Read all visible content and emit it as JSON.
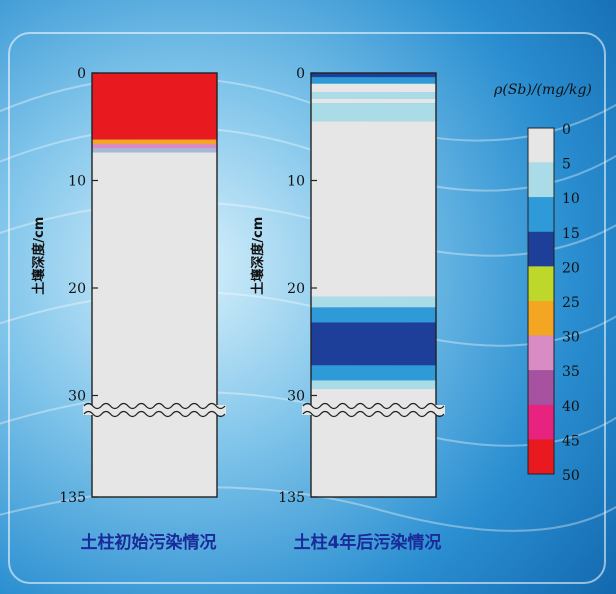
{
  "columns": [
    {
      "caption": "土柱初始污染情况",
      "y_axis_label": "土壤深度/cm",
      "tick_labels": [
        "0",
        "10",
        "20",
        "30",
        "135"
      ],
      "bands": [
        {
          "from_cm": 0,
          "to_cm": 6.2,
          "color": "#e8191f"
        },
        {
          "from_cm": 6.2,
          "to_cm": 6.6,
          "color": "#f4a623"
        },
        {
          "from_cm": 6.6,
          "to_cm": 7.0,
          "color": "#d98bc3"
        },
        {
          "from_cm": 7.0,
          "to_cm": 7.4,
          "color": "#aab6d8"
        },
        {
          "from_cm": 7.4,
          "to_cm": 135,
          "color": "#e6e6e6"
        }
      ]
    },
    {
      "caption": "土柱4年后污染情况",
      "y_axis_label": "土壤深度/cm",
      "tick_labels": [
        "0",
        "10",
        "20",
        "30",
        "135"
      ],
      "bands": [
        {
          "from_cm": 0,
          "to_cm": 0.4,
          "color": "#1e3f99"
        },
        {
          "from_cm": 0.4,
          "to_cm": 1.0,
          "color": "#2e9ad8"
        },
        {
          "from_cm": 1.0,
          "to_cm": 1.8,
          "color": "#e6e6e6"
        },
        {
          "from_cm": 1.8,
          "to_cm": 2.4,
          "color": "#a9dce6"
        },
        {
          "from_cm": 2.4,
          "to_cm": 2.8,
          "color": "#e6e6e6"
        },
        {
          "from_cm": 2.8,
          "to_cm": 4.5,
          "color": "#a9dce6"
        },
        {
          "from_cm": 4.5,
          "to_cm": 20.8,
          "color": "#e6e6e6"
        },
        {
          "from_cm": 20.8,
          "to_cm": 21.8,
          "color": "#a9dce6"
        },
        {
          "from_cm": 21.8,
          "to_cm": 23.2,
          "color": "#2e9ad8"
        },
        {
          "from_cm": 23.2,
          "to_cm": 27.2,
          "color": "#1e3f99"
        },
        {
          "from_cm": 27.2,
          "to_cm": 28.6,
          "color": "#2e9ad8"
        },
        {
          "from_cm": 28.6,
          "to_cm": 29.4,
          "color": "#a9dce6"
        },
        {
          "from_cm": 29.4,
          "to_cm": 135,
          "color": "#e6e6e6"
        }
      ]
    }
  ],
  "legend": {
    "title": "ρ(Sb)/(mg/kg)",
    "labels": [
      "0",
      "5",
      "10",
      "15",
      "20",
      "25",
      "30",
      "35",
      "40",
      "45",
      "50"
    ],
    "colors": [
      "#e6e6e6",
      "#a9dce6",
      "#2e9ad8",
      "#1e3f99",
      "#bdd82a",
      "#f4a623",
      "#d98bc3",
      "#a652a0",
      "#e8237f",
      "#e8191f"
    ]
  },
  "scale": {
    "depth_min": 0,
    "depth_break": 31,
    "depth_max": 135
  }
}
